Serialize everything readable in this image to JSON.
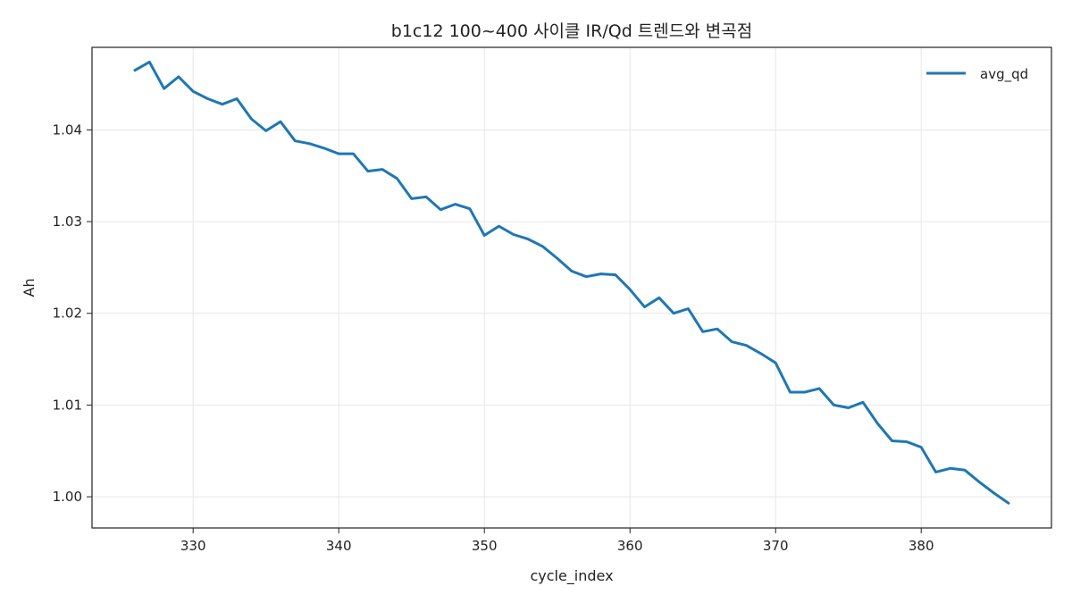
{
  "chart_data": {
    "type": "line",
    "title": "b1c12 100~400 사이클 IR/Qd 트렌드와 변곡점",
    "xlabel": "cycle_index",
    "ylabel": "Ah",
    "xlim": [
      322.9,
      1189.1
    ],
    "ylim": [
      0.9966,
      1.049
    ],
    "xticks": [
      330,
      340,
      350,
      360,
      370,
      380
    ],
    "yticks": [
      1.0,
      1.01,
      1.02,
      1.03,
      1.04
    ],
    "ytick_labels": [
      "1.00",
      "1.01",
      "1.02",
      "1.03",
      "1.04"
    ],
    "grid": true,
    "legend_position": "top-right",
    "series": [
      {
        "name": "avg_qd",
        "color": "#1f77b4",
        "x": [
          326,
          327,
          328,
          329,
          330,
          331,
          332,
          333,
          334,
          335,
          336,
          337,
          338,
          339,
          340,
          341,
          342,
          343,
          344,
          345,
          346,
          347,
          348,
          349,
          350,
          351,
          352,
          353,
          354,
          355,
          356,
          357,
          358,
          359,
          360,
          361,
          362,
          363,
          364,
          365,
          366,
          367,
          368,
          369,
          370,
          371,
          372,
          373,
          374,
          375,
          376,
          377,
          378,
          379,
          380,
          381,
          382,
          383,
          384,
          385,
          386
        ],
        "y": [
          1.0465,
          1.0474,
          1.0445,
          1.0458,
          1.0442,
          1.0434,
          1.0428,
          1.0434,
          1.0412,
          1.0399,
          1.0409,
          1.0388,
          1.0385,
          1.038,
          1.0374,
          1.0374,
          1.0355,
          1.0357,
          1.0347,
          1.0325,
          1.0327,
          1.0313,
          1.0319,
          1.0314,
          1.0285,
          1.0295,
          1.0286,
          1.0281,
          1.0273,
          1.026,
          1.0246,
          1.024,
          1.0243,
          1.0242,
          1.0226,
          1.0207,
          1.0217,
          1.02,
          1.0205,
          1.018,
          1.0183,
          1.0169,
          1.0165,
          1.0156,
          1.0146,
          1.0114,
          1.0114,
          1.0118,
          1.01,
          1.0097,
          1.0103,
          1.008,
          1.0061,
          1.006,
          1.0054,
          1.0027,
          1.0031,
          1.0029,
          1.0016,
          1.0004,
          0.9993
        ]
      }
    ]
  }
}
